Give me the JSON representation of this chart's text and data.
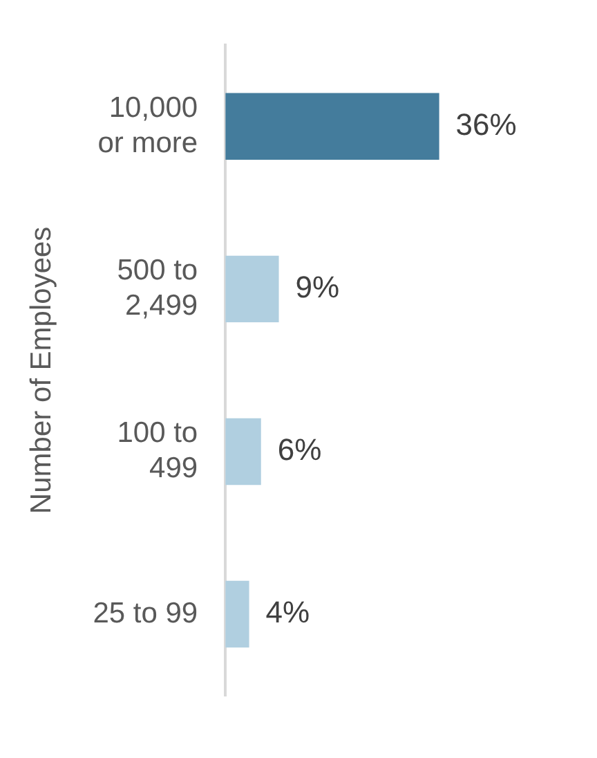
{
  "chart_data": {
    "type": "bar",
    "orientation": "horizontal",
    "ylabel": "Number of Employees",
    "categories": [
      "10,000 or more",
      "500 to 2,499",
      "100 to 499",
      "25 to 99"
    ],
    "values": [
      36,
      9,
      6,
      4
    ],
    "colors": [
      "#447c9c",
      "#b0cfe0",
      "#b0cfe0",
      "#b0cfe0"
    ],
    "value_labels": [
      "36%",
      "9%",
      "6%",
      "4%"
    ],
    "tick_labels": "y",
    "legend": false
  }
}
